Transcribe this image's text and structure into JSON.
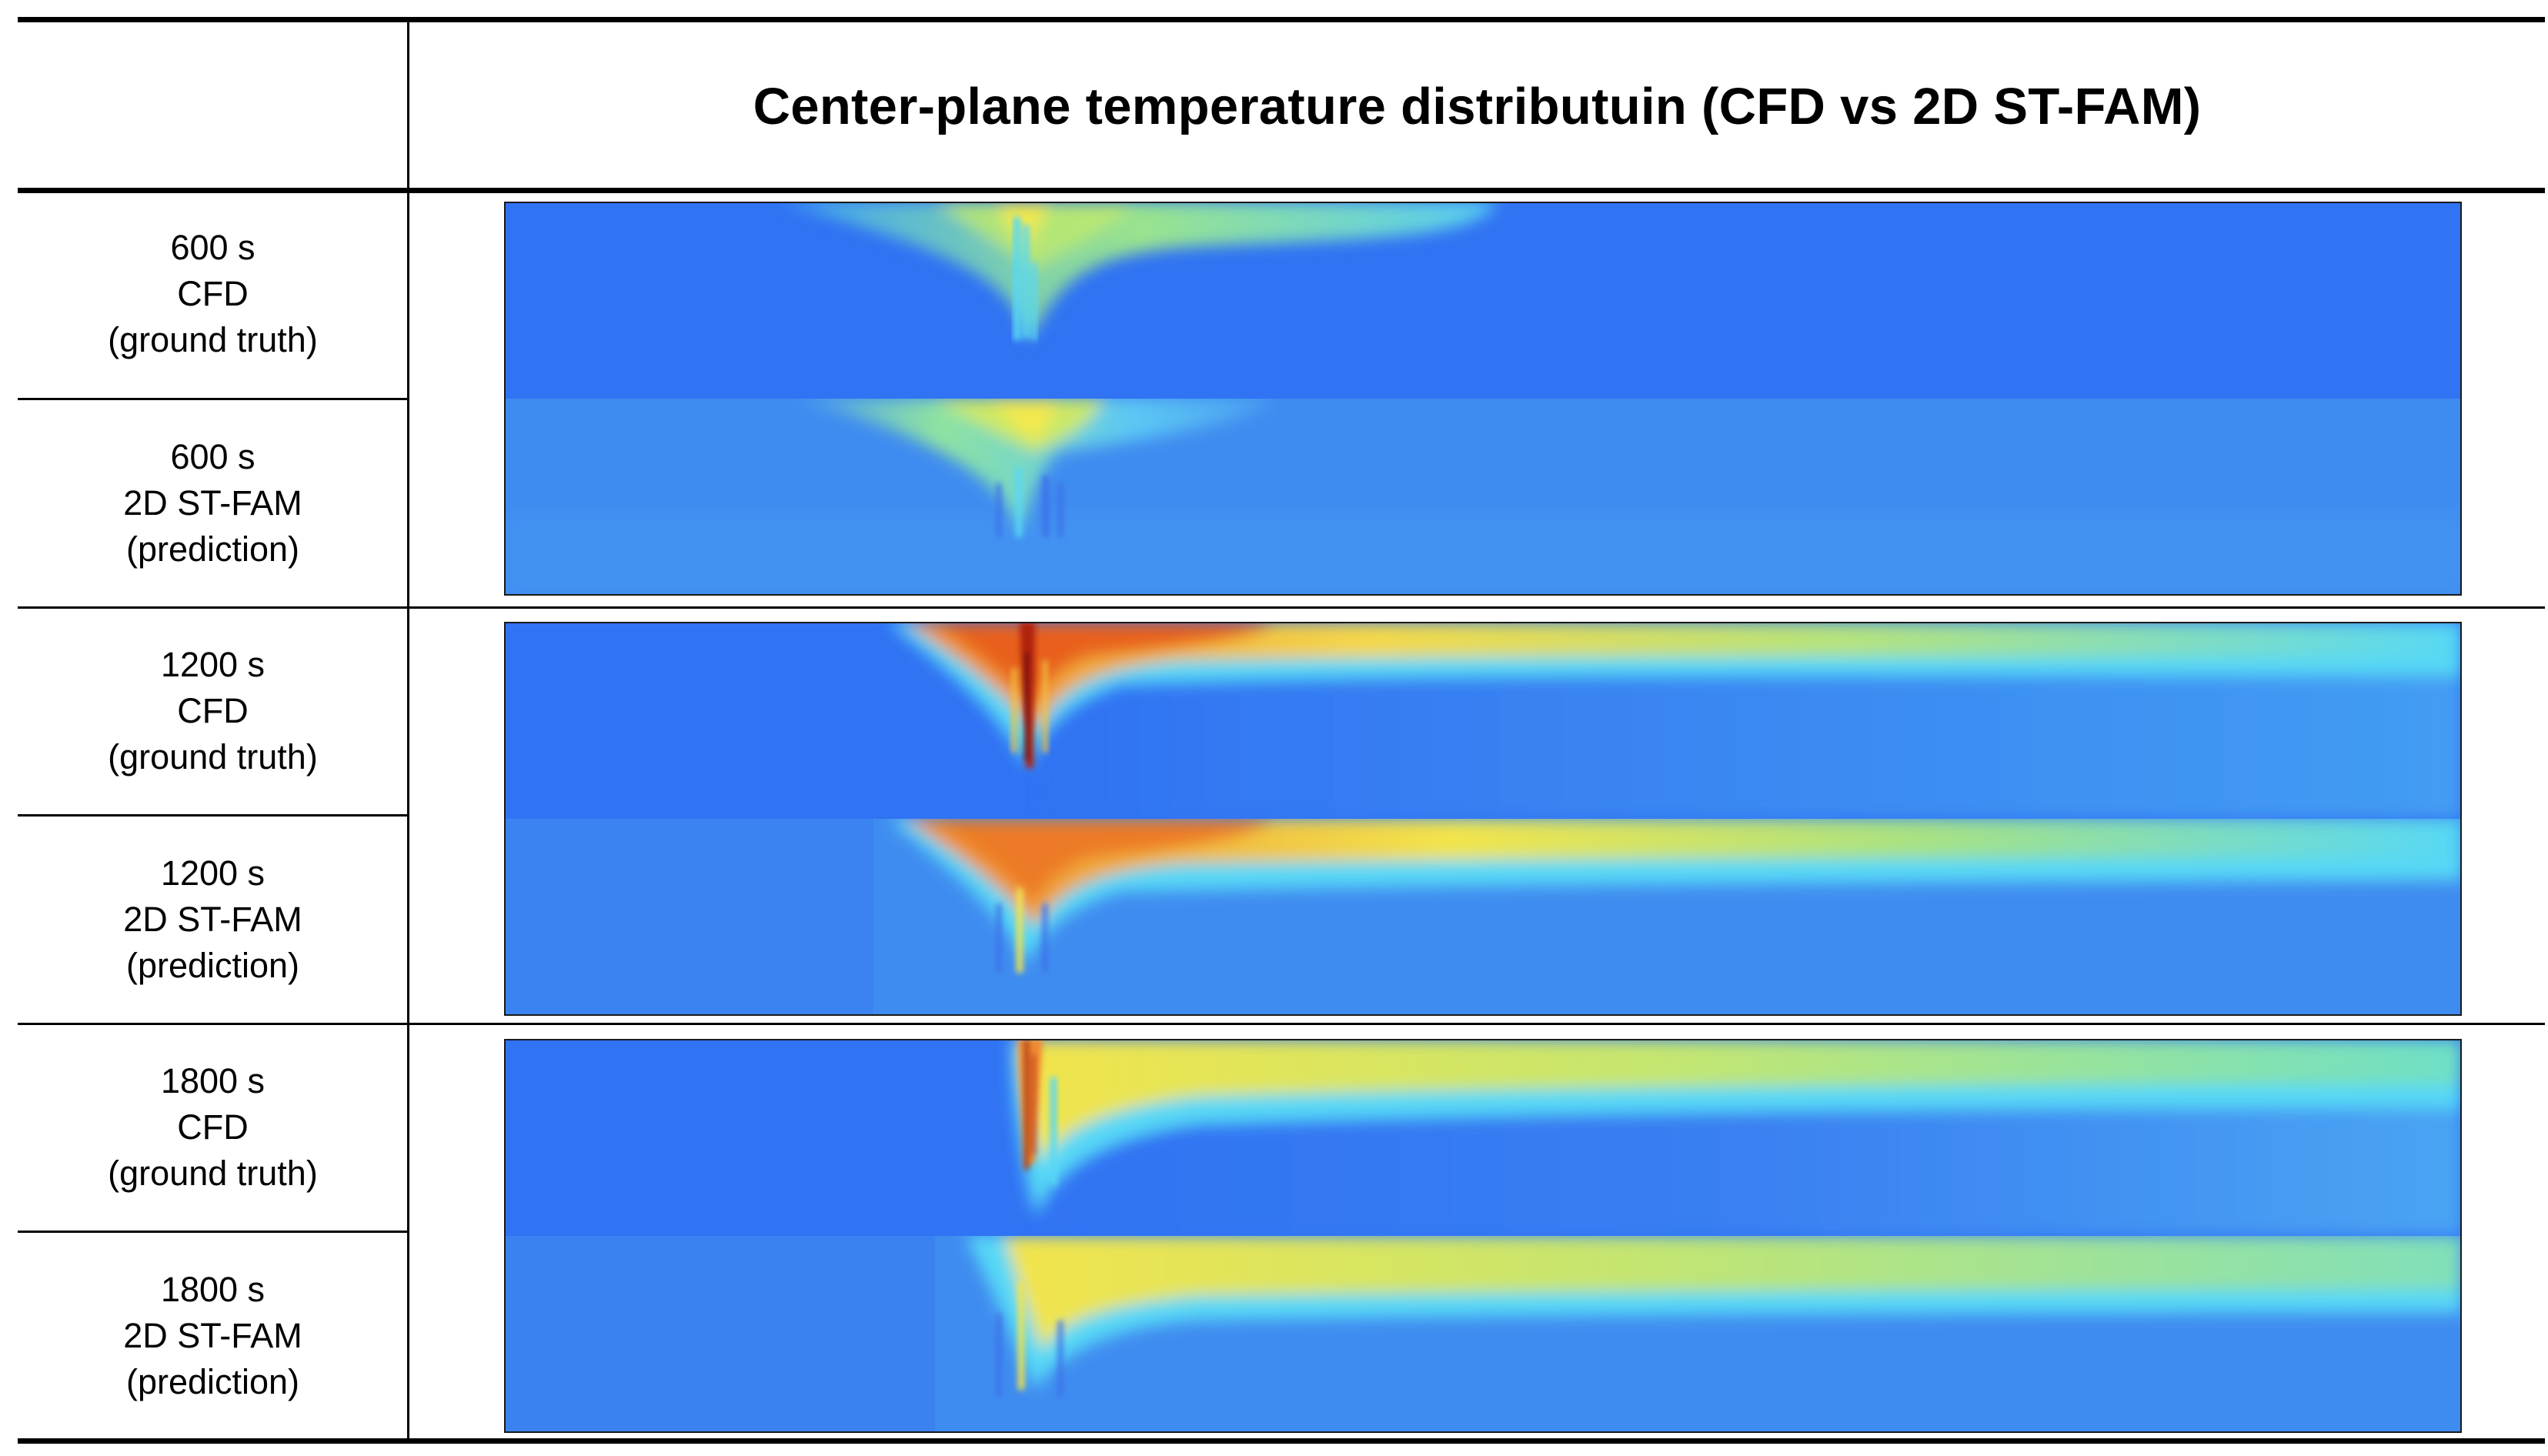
{
  "title": "Center-plane temperature distributuin (CFD vs 2D ST-FAM)",
  "colormap": "jet",
  "colors": {
    "background_blue": "#3073f3",
    "prediction_blue": "#3f8cf0",
    "cyan": "#56d8f6",
    "green": "#9fe38a",
    "yellow": "#f4e94c",
    "orange": "#f29a35",
    "red": "#e0401e",
    "dark_red": "#8a1010"
  },
  "rows": [
    {
      "time": "600 s",
      "panels": [
        {
          "time": "600 s",
          "source": "CFD",
          "note": "(ground truth)",
          "type": "cfd"
        },
        {
          "time": "600 s",
          "source": "2D ST-FAM",
          "note": "(prediction)",
          "type": "prediction"
        }
      ]
    },
    {
      "time": "1200 s",
      "panels": [
        {
          "time": "1200 s",
          "source": "CFD",
          "note": "(ground truth)",
          "type": "cfd"
        },
        {
          "time": "1200 s",
          "source": "2D ST-FAM",
          "note": "(prediction)",
          "type": "prediction"
        }
      ]
    },
    {
      "time": "1800 s",
      "panels": [
        {
          "time": "1800 s",
          "source": "CFD",
          "note": "(ground truth)",
          "type": "cfd"
        },
        {
          "time": "1800 s",
          "source": "2D ST-FAM",
          "note": "(prediction)",
          "type": "prediction"
        }
      ]
    }
  ]
}
